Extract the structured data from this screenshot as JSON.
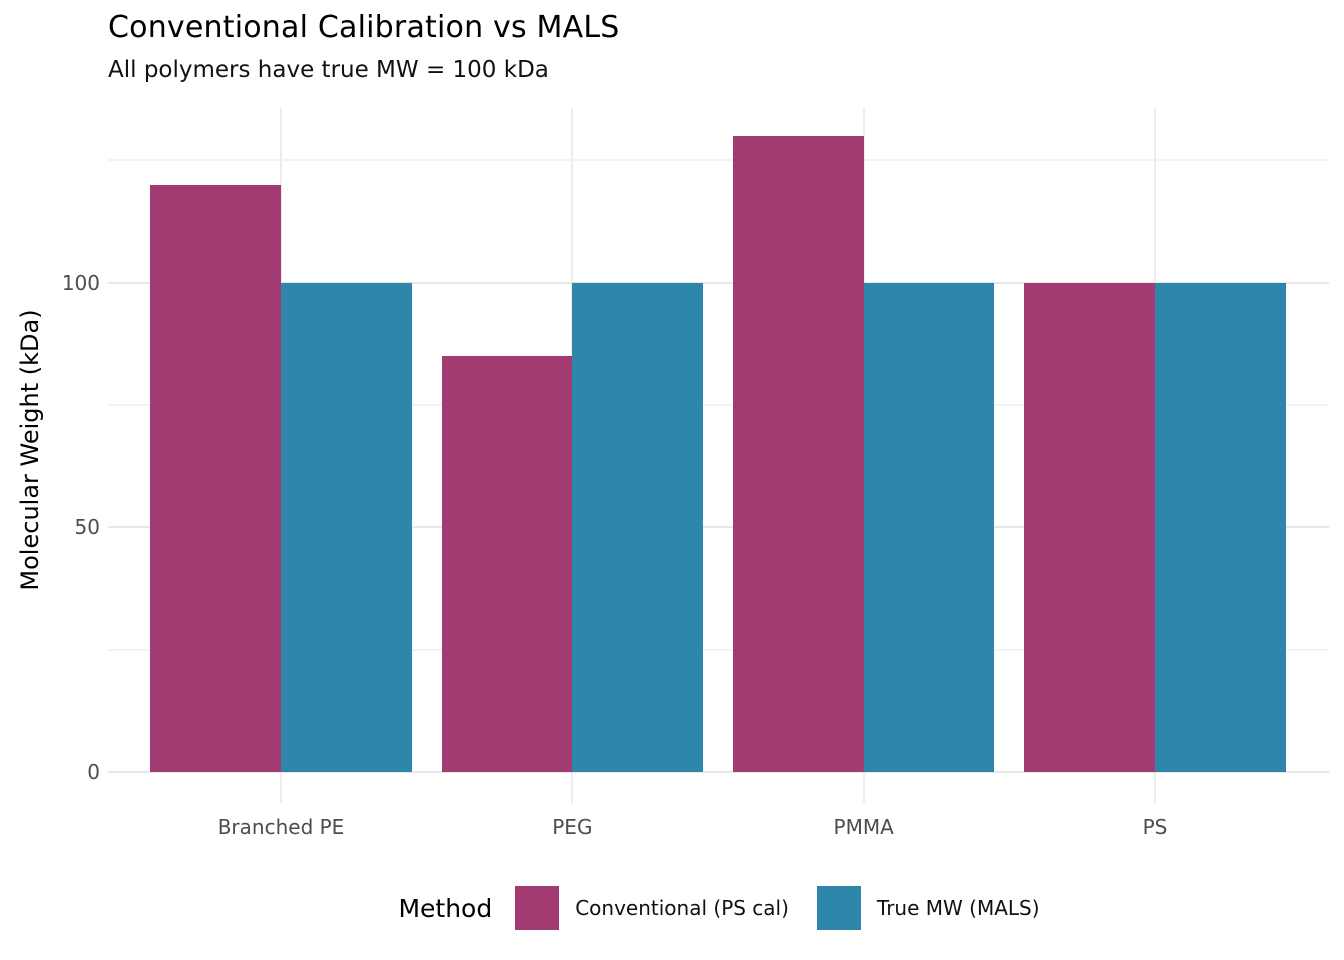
{
  "title": "Conventional Calibration vs MALS",
  "subtitle": "All polymers have true MW = 100 kDa",
  "y_axis": {
    "label": "Molecular Weight (kDa)",
    "tick_labels": [
      "0",
      "50",
      "100"
    ]
  },
  "x_axis": {
    "tick_labels": [
      "Branched PE",
      "PEG",
      "PMMA",
      "PS"
    ]
  },
  "legend": {
    "title": "Method",
    "items": [
      {
        "label": "Conventional (PS cal)",
        "color": "#A23B72"
      },
      {
        "label": "True MW (MALS)",
        "color": "#2E86AB"
      }
    ]
  },
  "colors": {
    "conventional": "#A23B72",
    "mals": "#2E86AB",
    "grid_major": "#E7E7E7",
    "grid_minor": "#F3F3F3",
    "tick_text": "#4D4D4D"
  },
  "chart_data": {
    "type": "bar",
    "categories": [
      "Branched PE",
      "PEG",
      "PMMA",
      "PS"
    ],
    "series": [
      {
        "name": "Conventional (PS cal)",
        "color": "#A23B72",
        "values": [
          120,
          85,
          130,
          100
        ]
      },
      {
        "name": "True MW (MALS)",
        "color": "#2E86AB",
        "values": [
          100,
          100,
          100,
          100
        ]
      }
    ],
    "title": "Conventional Calibration vs MALS",
    "subtitle": "All polymers have true MW = 100 kDa",
    "xlabel": "",
    "ylabel": "Molecular Weight (kDa)",
    "ylim": [
      -6.3,
      135.7
    ],
    "yticks_major": [
      0,
      50,
      100
    ],
    "yticks_minor": [
      25,
      75,
      125
    ],
    "grid": true,
    "grouped": true,
    "legend_title": "Method",
    "legend_position": "bottom"
  }
}
